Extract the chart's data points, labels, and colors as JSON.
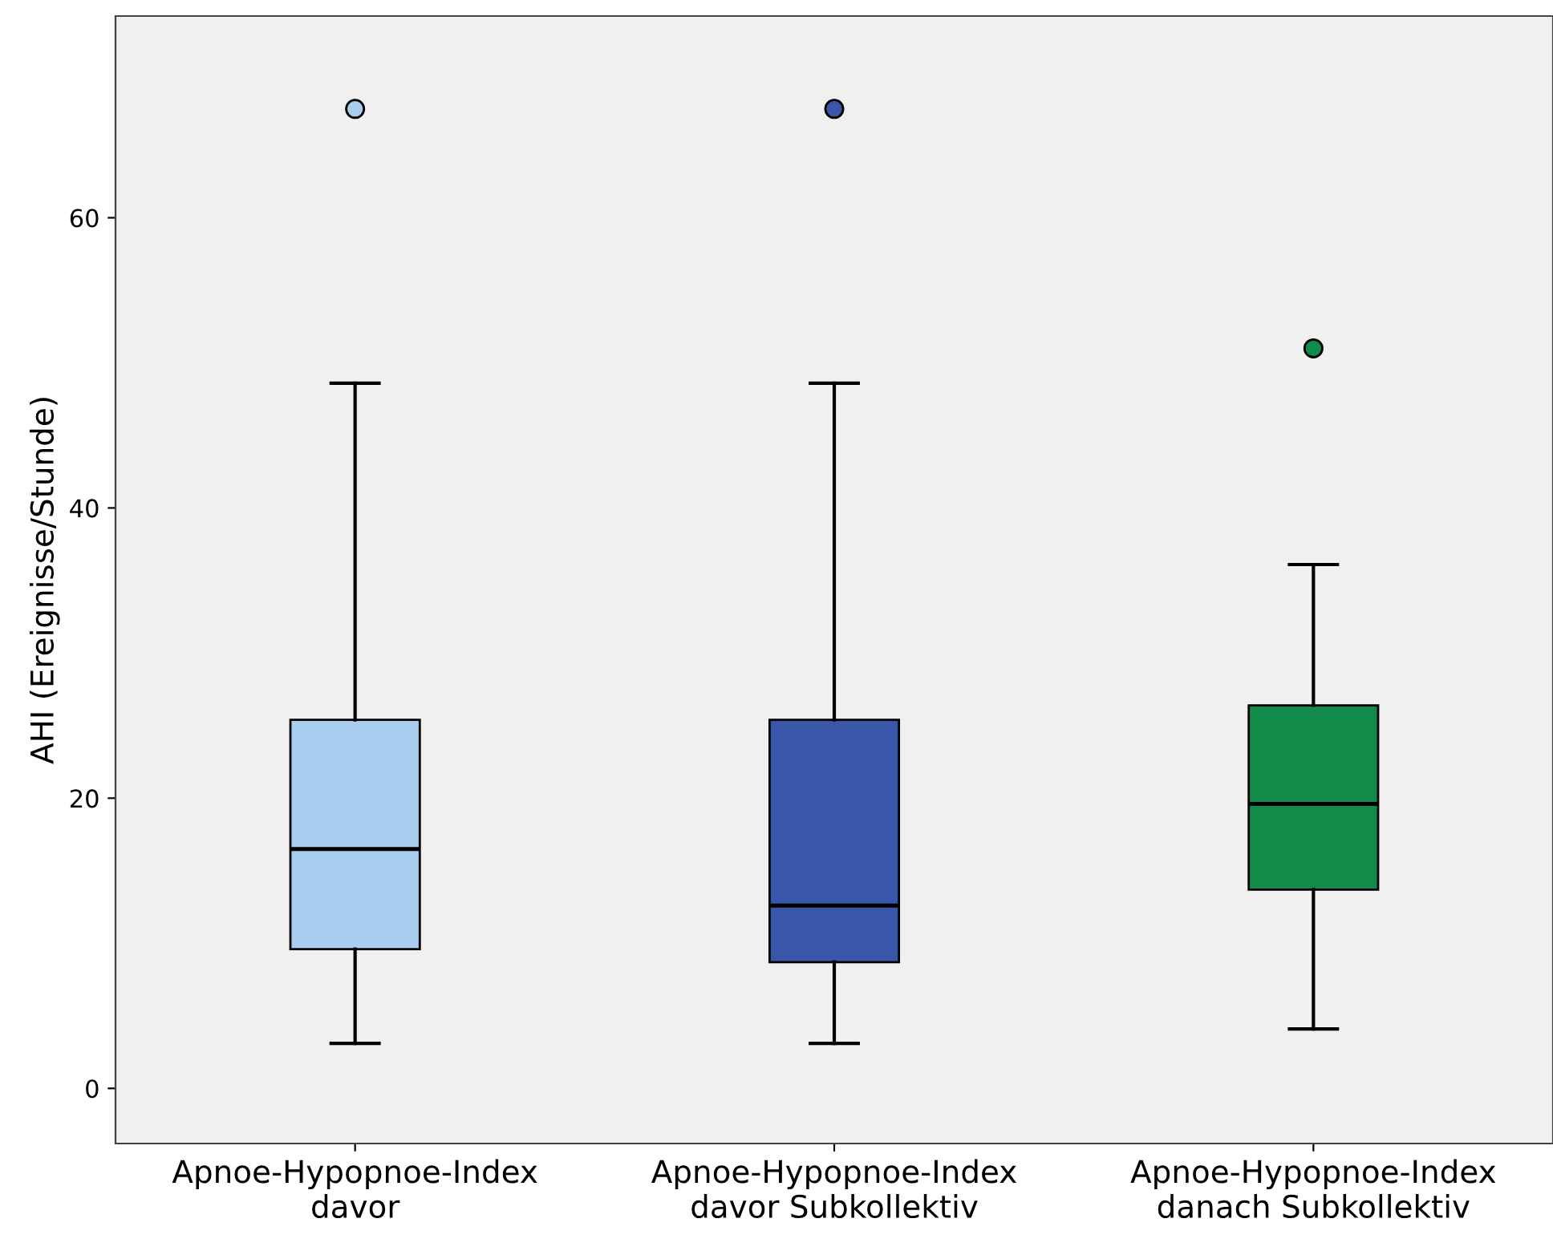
{
  "chart_data": {
    "type": "box",
    "ylabel": "AHI (Ereignisse/Stunde)",
    "categories": [
      "Apnoe-Hypopnoe-Index\ndavor",
      "Apnoe-Hypopnoe-Index\ndavor Subkollektiv",
      "Apnoe-Hypopnoe-Index\ndanach Subkollektiv"
    ],
    "boxes": [
      {
        "low": 3.1,
        "q1": 9.6,
        "median": 16.5,
        "q3": 25.4,
        "high": 48.6,
        "outliers": [
          67.5
        ]
      },
      {
        "low": 3.1,
        "q1": 8.7,
        "median": 12.6,
        "q3": 25.4,
        "high": 48.6,
        "outliers": [
          67.5
        ]
      },
      {
        "low": 4.1,
        "q1": 13.7,
        "median": 19.6,
        "q3": 26.4,
        "high": 36.1,
        "outliers": [
          51.0
        ]
      }
    ],
    "colors": [
      "#a8cdee",
      "#3a56a8",
      "#118a4a"
    ],
    "ylim": [
      -3.8,
      73.9
    ],
    "yticks": [
      0,
      20,
      40,
      60
    ],
    "grid": false
  }
}
